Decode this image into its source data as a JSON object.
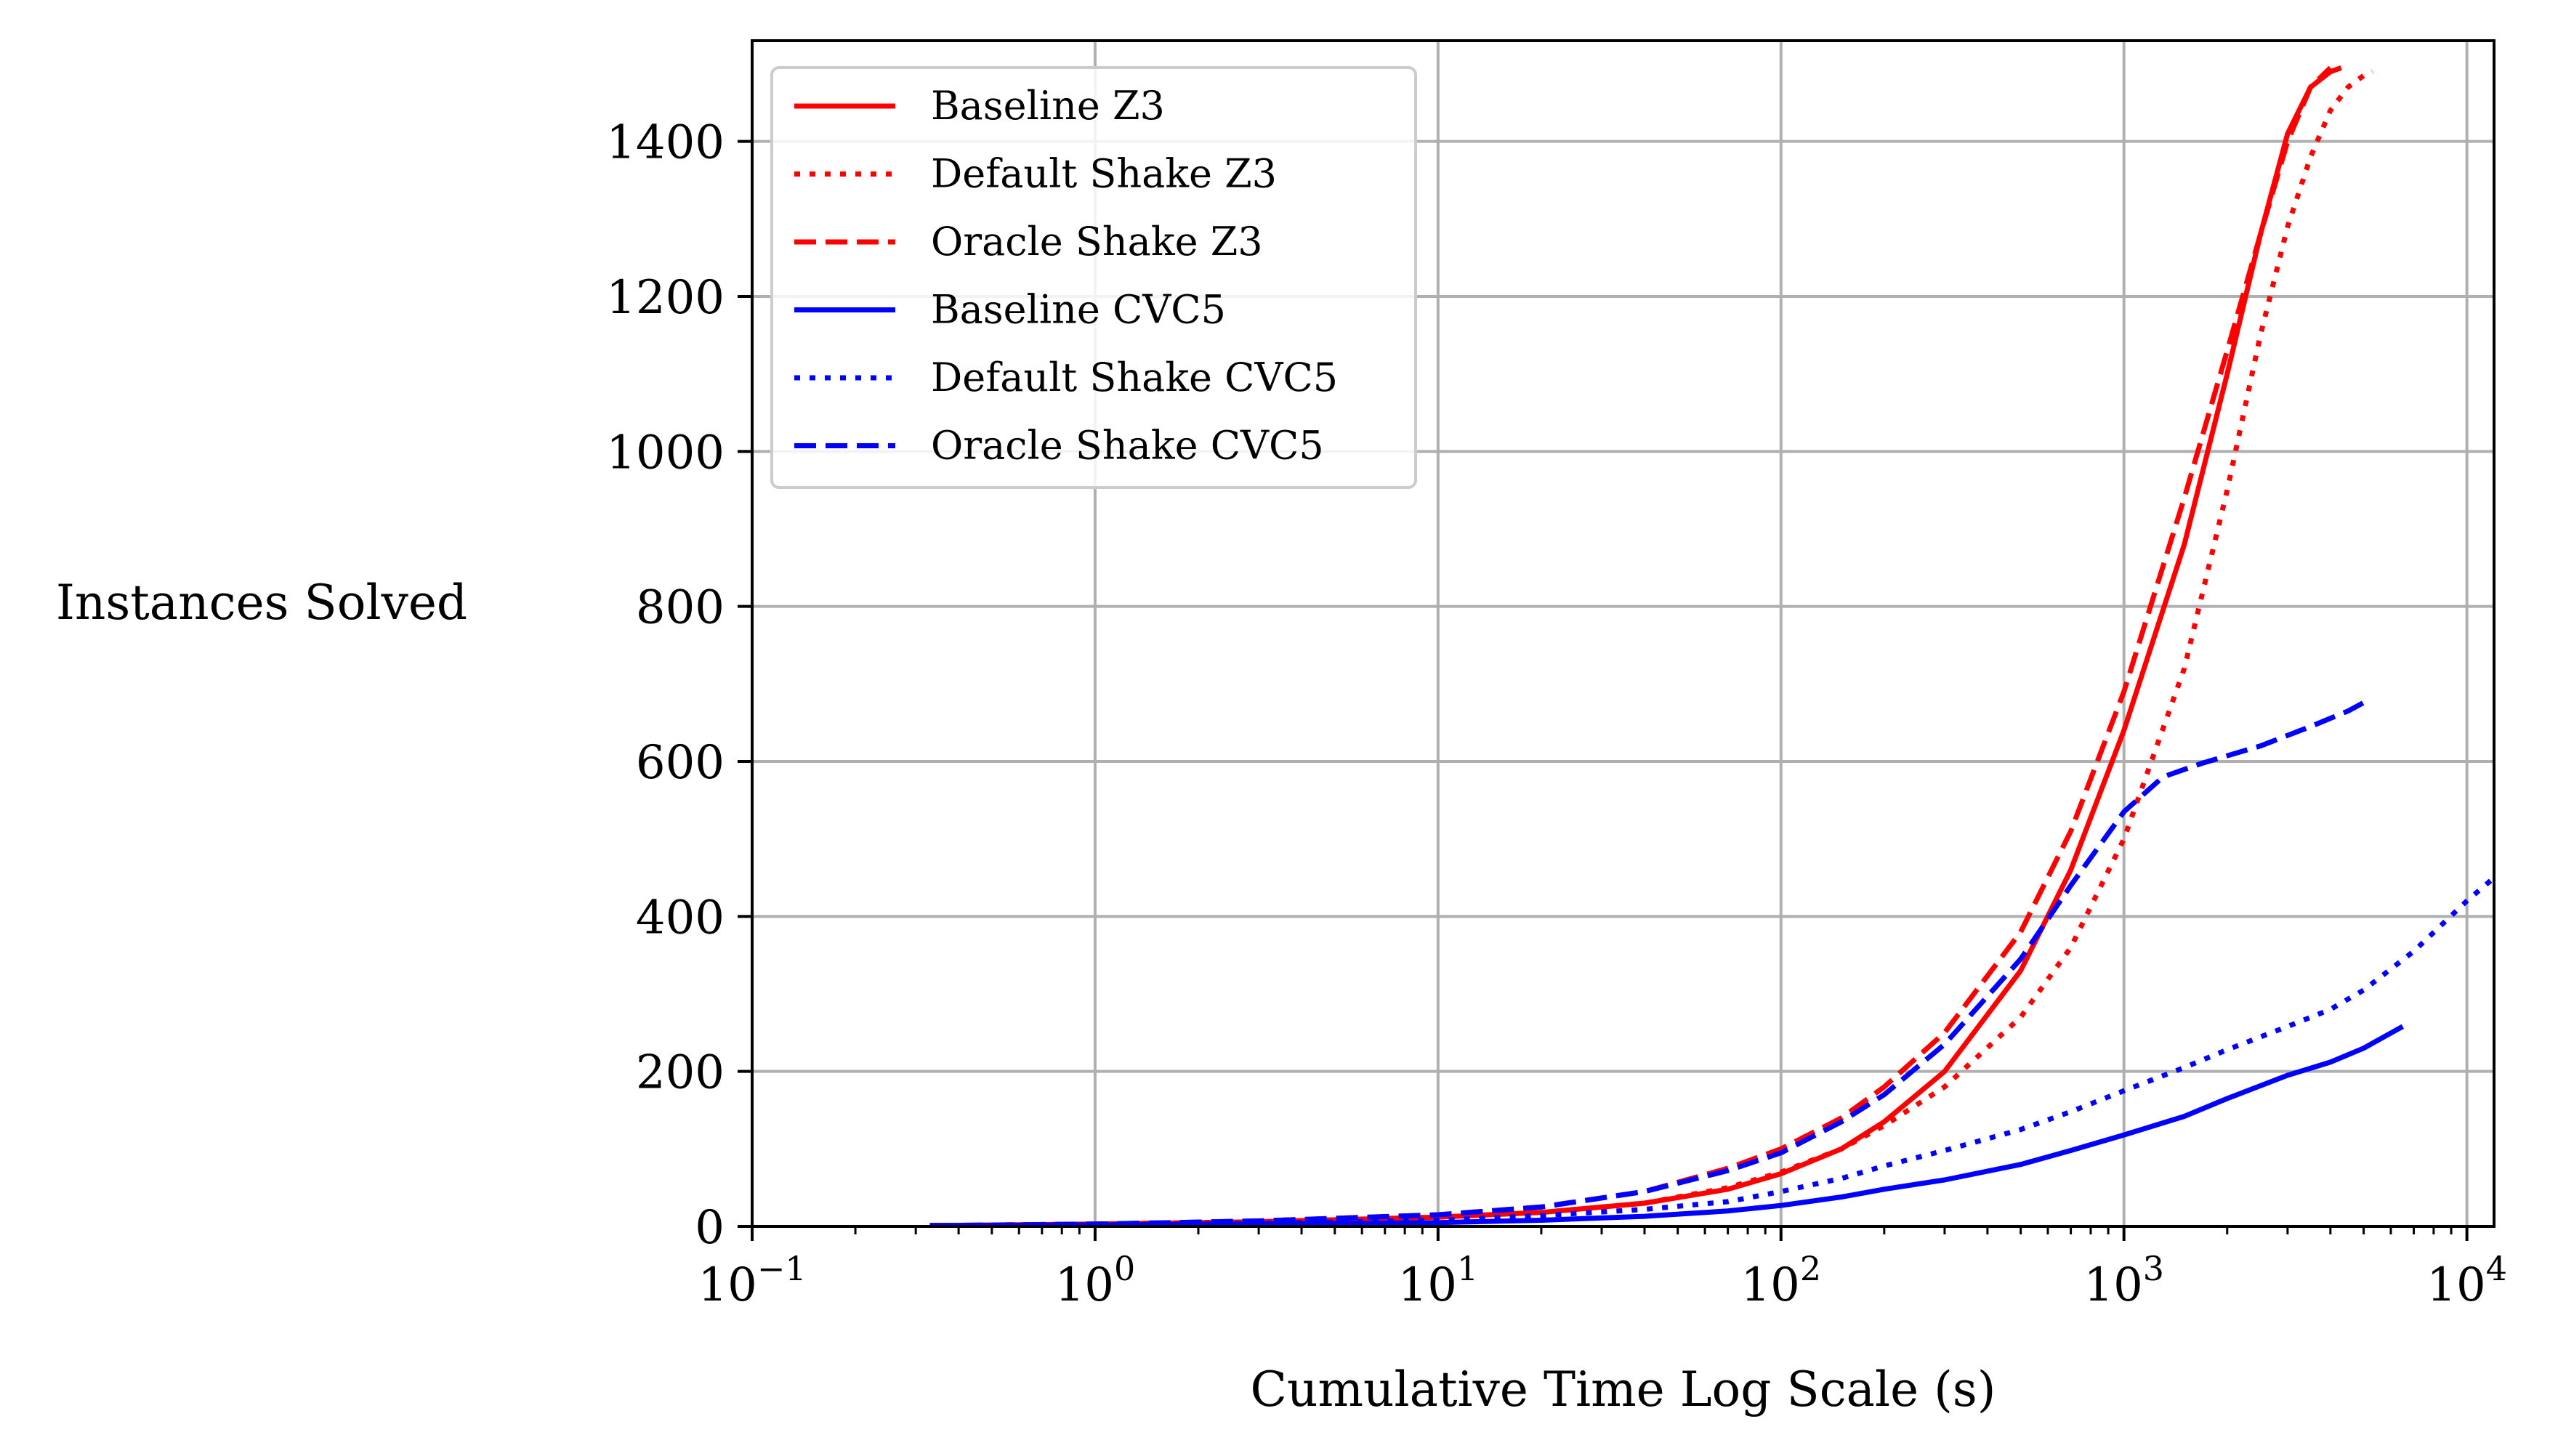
{
  "chart_data": {
    "type": "line",
    "xlabel": "Cumulative Time Log Scale (s)",
    "ylabel": "Instances Solved",
    "x_scale": "log",
    "xlim": [
      0.1,
      12000
    ],
    "ylim": [
      0,
      1530
    ],
    "grid": true,
    "legend_position": "top-left",
    "x_ticks": [
      {
        "value": 0.1,
        "base": "10",
        "exp": "−1"
      },
      {
        "value": 1,
        "base": "10",
        "exp": "0"
      },
      {
        "value": 10,
        "base": "10",
        "exp": "1"
      },
      {
        "value": 100,
        "base": "10",
        "exp": "2"
      },
      {
        "value": 1000,
        "base": "10",
        "exp": "3"
      },
      {
        "value": 10000,
        "base": "10",
        "exp": "4"
      }
    ],
    "y_ticks": [
      0,
      200,
      400,
      600,
      800,
      1000,
      1200,
      1400
    ],
    "series": [
      {
        "name": "Baseline Z3",
        "color": "#ff0000",
        "style": "solid",
        "points": [
          [
            0.33,
            1
          ],
          [
            1,
            3
          ],
          [
            3,
            6
          ],
          [
            10,
            12
          ],
          [
            20,
            18
          ],
          [
            40,
            30
          ],
          [
            70,
            48
          ],
          [
            100,
            68
          ],
          [
            150,
            100
          ],
          [
            200,
            135
          ],
          [
            300,
            200
          ],
          [
            500,
            330
          ],
          [
            700,
            460
          ],
          [
            1000,
            640
          ],
          [
            1500,
            880
          ],
          [
            2000,
            1100
          ],
          [
            2500,
            1280
          ],
          [
            3000,
            1410
          ],
          [
            3500,
            1470
          ],
          [
            4000,
            1490
          ],
          [
            4300,
            1495
          ]
        ]
      },
      {
        "name": "Default Shake Z3",
        "color": "#ff0000",
        "style": "dotted",
        "points": [
          [
            0.33,
            1
          ],
          [
            1,
            3
          ],
          [
            3,
            6
          ],
          [
            10,
            12
          ],
          [
            20,
            18
          ],
          [
            40,
            30
          ],
          [
            70,
            50
          ],
          [
            100,
            70
          ],
          [
            150,
            100
          ],
          [
            200,
            130
          ],
          [
            300,
            180
          ],
          [
            500,
            270
          ],
          [
            700,
            360
          ],
          [
            1000,
            500
          ],
          [
            1500,
            720
          ],
          [
            2000,
            950
          ],
          [
            2500,
            1150
          ],
          [
            3000,
            1290
          ],
          [
            3500,
            1380
          ],
          [
            4000,
            1440
          ],
          [
            4500,
            1470
          ],
          [
            5000,
            1485
          ],
          [
            5300,
            1490
          ]
        ]
      },
      {
        "name": "Oracle Shake Z3",
        "color": "#ff0000",
        "style": "dashed",
        "points": [
          [
            0.33,
            1
          ],
          [
            1,
            3
          ],
          [
            3,
            7
          ],
          [
            10,
            15
          ],
          [
            20,
            25
          ],
          [
            40,
            45
          ],
          [
            70,
            75
          ],
          [
            100,
            100
          ],
          [
            150,
            140
          ],
          [
            200,
            180
          ],
          [
            300,
            250
          ],
          [
            500,
            380
          ],
          [
            700,
            510
          ],
          [
            1000,
            690
          ],
          [
            1500,
            940
          ],
          [
            2000,
            1130
          ],
          [
            2500,
            1280
          ],
          [
            3000,
            1400
          ],
          [
            3500,
            1470
          ],
          [
            4000,
            1495
          ]
        ]
      },
      {
        "name": "Baseline CVC5",
        "color": "#0000ff",
        "style": "solid",
        "points": [
          [
            0.33,
            1
          ],
          [
            1,
            2
          ],
          [
            3,
            3
          ],
          [
            10,
            5
          ],
          [
            20,
            8
          ],
          [
            40,
            13
          ],
          [
            70,
            20
          ],
          [
            100,
            27
          ],
          [
            150,
            38
          ],
          [
            200,
            48
          ],
          [
            300,
            60
          ],
          [
            500,
            80
          ],
          [
            700,
            98
          ],
          [
            1000,
            118
          ],
          [
            1500,
            142
          ],
          [
            2000,
            165
          ],
          [
            3000,
            195
          ],
          [
            4000,
            212
          ],
          [
            5000,
            230
          ],
          [
            6500,
            258
          ]
        ]
      },
      {
        "name": "Default Shake CVC5",
        "color": "#0000ff",
        "style": "dotted",
        "points": [
          [
            0.33,
            1
          ],
          [
            1,
            2
          ],
          [
            3,
            4
          ],
          [
            10,
            8
          ],
          [
            20,
            14
          ],
          [
            40,
            22
          ],
          [
            70,
            32
          ],
          [
            100,
            45
          ],
          [
            150,
            62
          ],
          [
            200,
            78
          ],
          [
            300,
            98
          ],
          [
            500,
            125
          ],
          [
            700,
            148
          ],
          [
            1000,
            175
          ],
          [
            1500,
            205
          ],
          [
            2000,
            228
          ],
          [
            3000,
            258
          ],
          [
            4000,
            280
          ],
          [
            5000,
            305
          ],
          [
            7000,
            355
          ],
          [
            10000,
            420
          ],
          [
            12000,
            450
          ]
        ]
      },
      {
        "name": "Oracle Shake CVC5",
        "color": "#0000ff",
        "style": "dashed",
        "points": [
          [
            0.33,
            1
          ],
          [
            1,
            3
          ],
          [
            3,
            7
          ],
          [
            10,
            15
          ],
          [
            20,
            25
          ],
          [
            40,
            45
          ],
          [
            70,
            72
          ],
          [
            100,
            95
          ],
          [
            150,
            135
          ],
          [
            200,
            170
          ],
          [
            300,
            235
          ],
          [
            500,
            345
          ],
          [
            700,
            440
          ],
          [
            1000,
            535
          ],
          [
            1300,
            580
          ],
          [
            1700,
            598
          ],
          [
            2500,
            620
          ],
          [
            3500,
            645
          ],
          [
            4500,
            665
          ],
          [
            5200,
            680
          ]
        ]
      }
    ]
  }
}
